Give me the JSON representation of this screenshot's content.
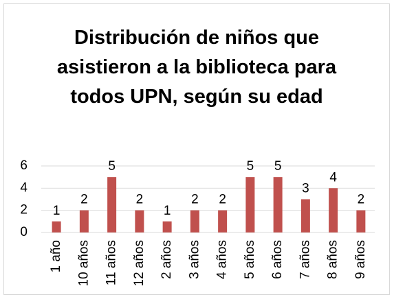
{
  "chart_data": {
    "type": "bar",
    "title": "Distribución de niños que asistieron a la biblioteca para todos UPN, según su edad",
    "categories": [
      "1 año",
      "10 años",
      "11 años",
      "12 años",
      "2 años",
      "3 años",
      "4 años",
      "5 años",
      "6 años",
      "7 años",
      "8 años",
      "9 años"
    ],
    "values": [
      1,
      2,
      5,
      2,
      1,
      2,
      2,
      5,
      5,
      3,
      4,
      2
    ],
    "color": "#c0504d",
    "ylim": [
      0,
      6
    ],
    "yticks": [
      0,
      2,
      4,
      6
    ],
    "grid": true
  }
}
